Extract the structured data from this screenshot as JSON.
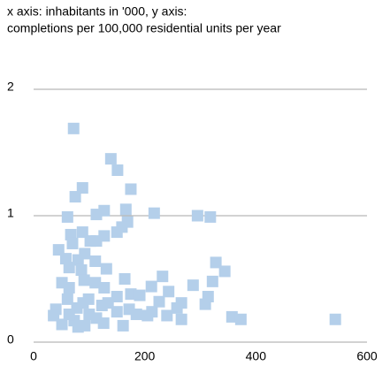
{
  "chart_data": {
    "type": "scatter",
    "title": "x axis: inhabitants in '000, y axis:",
    "subtitle": "completions per 100,000 residential units per year",
    "color": "#b4cfea",
    "x": [
      72,
      139,
      151,
      88,
      175,
      75,
      61,
      113,
      127,
      166,
      217,
      295,
      318,
      169,
      159,
      150,
      88,
      67,
      127,
      102,
      45,
      113,
      70,
      92,
      58,
      80,
      111,
      328,
      64,
      86,
      131,
      344,
      232,
      164,
      91,
      322,
      111,
      212,
      287,
      64,
      127,
      243,
      175,
      191,
      314,
      99,
      150,
      61,
      226,
      266,
      123,
      78,
      40,
      172,
      213,
      309,
      258,
      150,
      100,
      36,
      185,
      240,
      357,
      373,
      543,
      113,
      73,
      205,
      266,
      51,
      92,
      161,
      80,
      126,
      64,
      89,
      134,
      51
    ],
    "values": [
      1.69,
      1.45,
      1.36,
      1.22,
      1.21,
      1.15,
      0.99,
      1.01,
      1.04,
      1.05,
      1.02,
      1.0,
      0.99,
      0.95,
      0.91,
      0.87,
      0.87,
      0.85,
      0.84,
      0.8,
      0.73,
      0.8,
      0.78,
      0.7,
      0.66,
      0.65,
      0.64,
      0.63,
      0.59,
      0.57,
      0.58,
      0.56,
      0.52,
      0.5,
      0.49,
      0.48,
      0.47,
      0.44,
      0.45,
      0.43,
      0.43,
      0.4,
      0.38,
      0.37,
      0.36,
      0.34,
      0.36,
      0.34,
      0.32,
      0.31,
      0.29,
      0.27,
      0.26,
      0.26,
      0.24,
      0.3,
      0.27,
      0.24,
      0.22,
      0.21,
      0.22,
      0.21,
      0.2,
      0.18,
      0.18,
      0.19,
      0.17,
      0.21,
      0.18,
      0.14,
      0.13,
      0.13,
      0.12,
      0.15,
      0.22,
      0.31,
      0.31,
      0.47
    ],
    "xlim": [
      0,
      600
    ],
    "xticks": [
      0,
      200,
      400,
      600
    ],
    "ylim": [
      0,
      2
    ],
    "yticks": [
      0,
      1,
      2
    ],
    "grid": true
  }
}
